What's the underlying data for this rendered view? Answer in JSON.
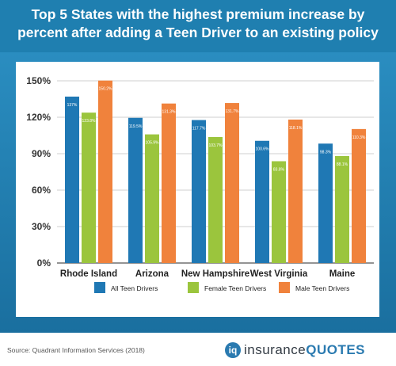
{
  "header": {
    "title": "Top 5 States with the highest premium increase by percent after adding a Teen Driver to an existing policy"
  },
  "footer": {
    "source": "Source: Quadrant Information Services (2018)",
    "logo_part1": "insurance",
    "logo_part2": "QUOTES",
    "logo_icon": "iq-logo-icon"
  },
  "colors": {
    "header_bg": "#1f7fb0",
    "all": "#1f78b4",
    "female": "#9bc53d",
    "male": "#f0823c"
  },
  "chart_data": {
    "type": "bar",
    "categories": [
      "Rhode Island",
      "Arizona",
      "New Hampshire",
      "West Virginia",
      "Maine"
    ],
    "series": [
      {
        "name": "All Teen Drivers",
        "values": [
          137,
          119.5,
          117.7,
          100.6,
          98.3
        ],
        "labels": [
          "137%",
          "119.5%",
          "117.7%",
          "100.6%",
          "98.3%"
        ]
      },
      {
        "name": "Female Teen Drivers",
        "values": [
          123.8,
          105.9,
          103.7,
          83.8,
          88.1
        ],
        "labels": [
          "123.8%",
          "105.9%",
          "103.7%",
          "83.8%",
          "88.1%"
        ]
      },
      {
        "name": "Male Teen Drivers",
        "values": [
          150.2,
          131.3,
          131.7,
          118.1,
          110.3
        ],
        "labels": [
          "150.2%",
          "131.3%",
          "131.7%",
          "118.1%",
          "110.3%"
        ]
      }
    ],
    "yticks": [
      "0%",
      "30%",
      "60%",
      "90%",
      "120%",
      "150%"
    ],
    "ytick_values": [
      0,
      30,
      60,
      90,
      120,
      150
    ],
    "ylim": [
      0,
      150
    ],
    "grid": true,
    "legend_position": "bottom"
  }
}
